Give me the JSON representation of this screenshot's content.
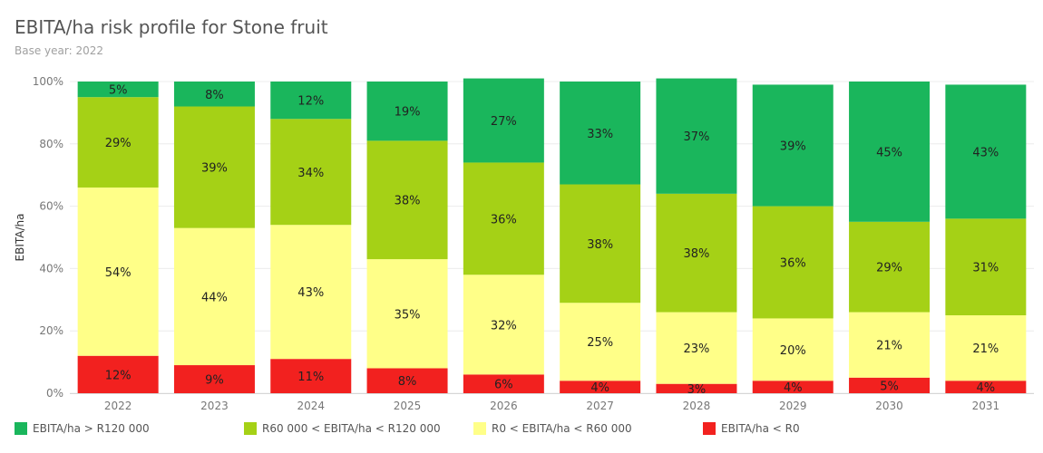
{
  "title": "EBITA/ha risk profile for Stone fruit",
  "subtitle": "Base year: 2022",
  "chart_data": {
    "type": "bar",
    "stacked": "percent",
    "title": "EBITA/ha risk profile for Stone fruit",
    "subtitle": "Base year: 2022",
    "xlabel": "",
    "ylabel": "EBITA/ha",
    "ylim": [
      0,
      100
    ],
    "yticks": [
      "0%",
      "20%",
      "40%",
      "60%",
      "80%",
      "100%"
    ],
    "grid": true,
    "legend_position": "bottom",
    "categories": [
      "2022",
      "2023",
      "2024",
      "2025",
      "2026",
      "2027",
      "2028",
      "2029",
      "2030",
      "2031"
    ],
    "series": [
      {
        "name": "EBITA/ha < R0",
        "color": "#f2211f",
        "values": [
          12,
          9,
          11,
          8,
          6,
          4,
          3,
          4,
          5,
          4
        ]
      },
      {
        "name": "R0 < EBITA/ha < R60 000",
        "color": "#ffff88",
        "values": [
          54,
          44,
          43,
          35,
          32,
          25,
          23,
          20,
          21,
          21
        ]
      },
      {
        "name": "R60 000 < EBITA/ha < R120 000",
        "color": "#a5d116",
        "values": [
          29,
          39,
          34,
          38,
          36,
          38,
          38,
          36,
          29,
          31
        ]
      },
      {
        "name": "EBITA/ha > R120 000",
        "color": "#1ab65c",
        "values": [
          5,
          8,
          12,
          19,
          27,
          33,
          37,
          39,
          45,
          43
        ]
      }
    ]
  },
  "legend": [
    {
      "label": "EBITA/ha > R120 000",
      "color": "#1ab65c"
    },
    {
      "label": "R60 000 < EBITA/ha < R120 000",
      "color": "#a5d116"
    },
    {
      "label": "R0 < EBITA/ha < R60 000",
      "color": "#ffff88"
    },
    {
      "label": "EBITA/ha < R0",
      "color": "#f2211f"
    }
  ]
}
